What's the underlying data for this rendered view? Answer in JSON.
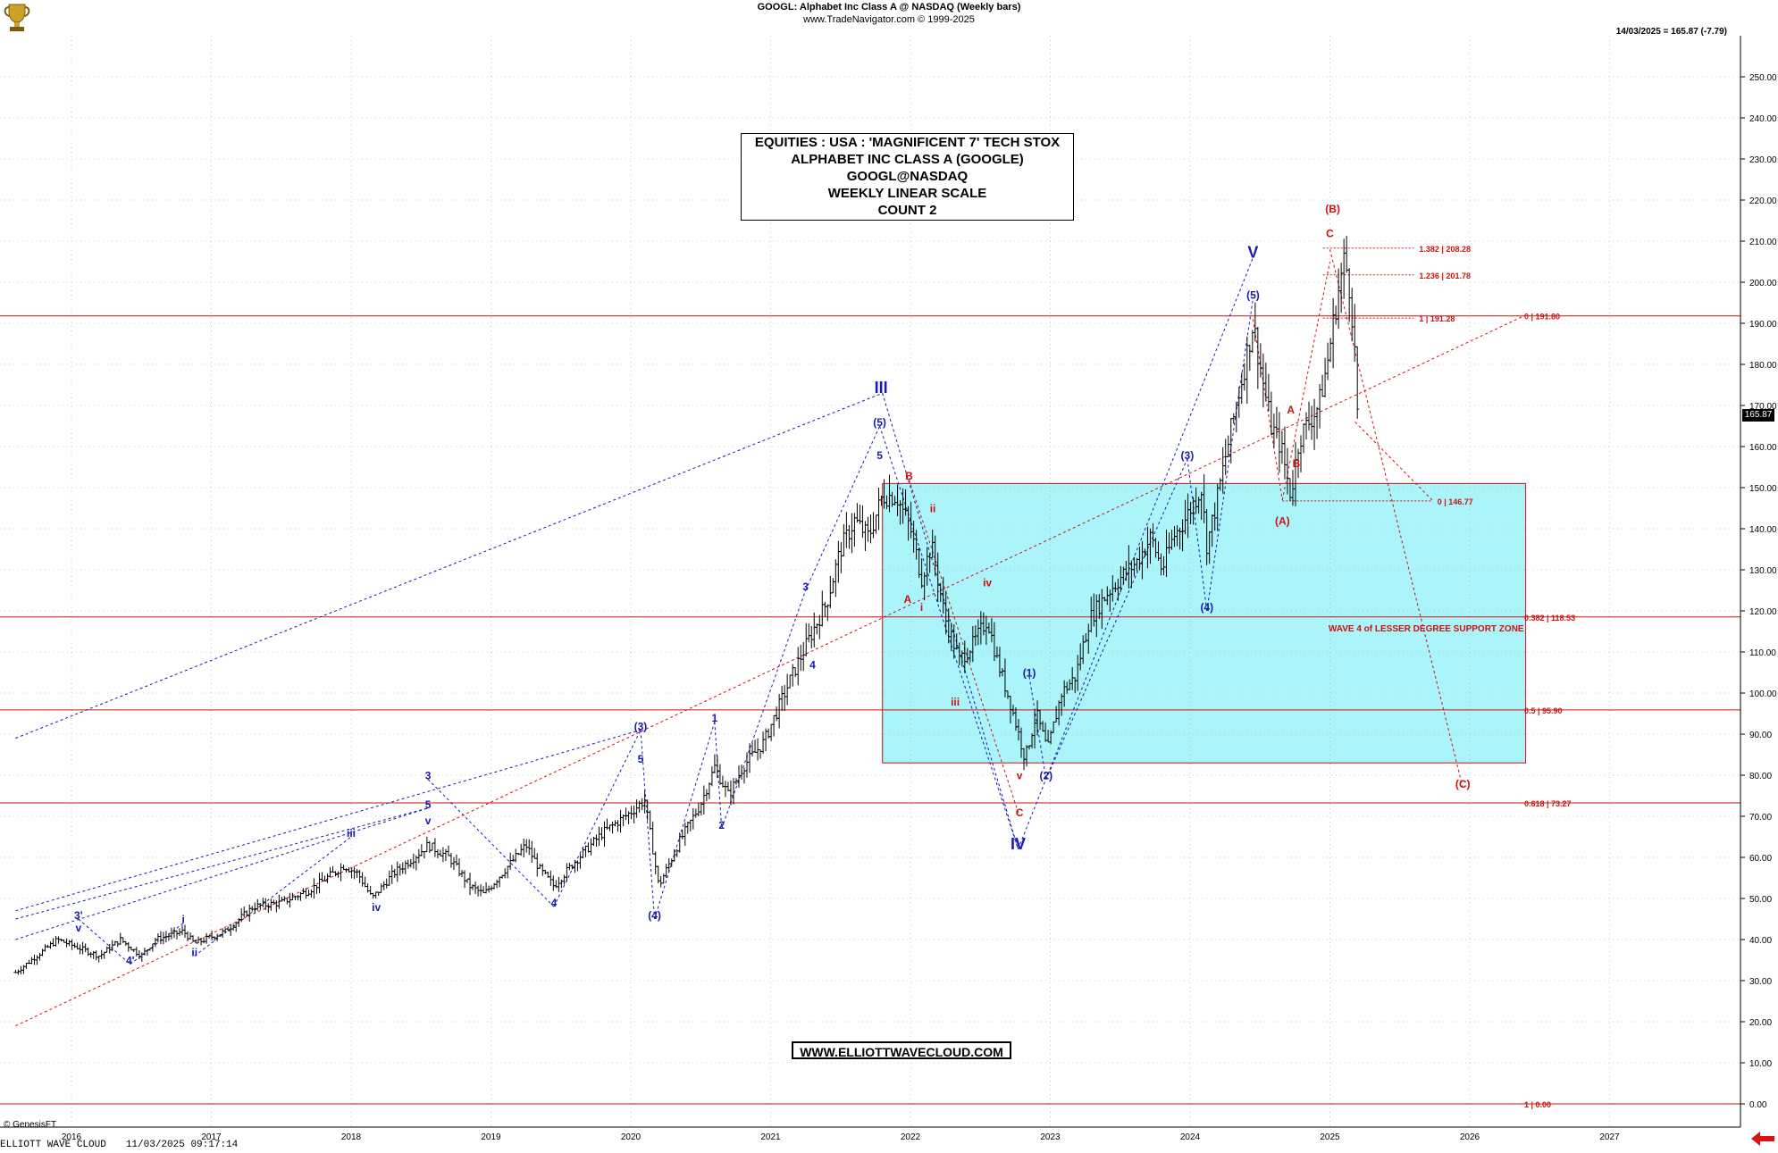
{
  "header": {
    "title": "GOOGL:  Alphabet Inc Class A @ NASDAQ  (Weekly bars)",
    "subtitle": "www.TradeNavigator.com © 1999-2025",
    "last_bar": "14/03/2025 = 165.87 (-7.79)"
  },
  "title_box": {
    "line1": "EQUITIES : USA : 'MAGNIFICENT 7' TECH STOX",
    "line2": "ALPHABET INC CLASS A (GOOGLE)",
    "line3": "GOOGL@NASDAQ",
    "line4": "WEEKLY LINEAR SCALE",
    "line5": "COUNT 2"
  },
  "url_box": "WWW.ELLIOTTWAVECLOUD.COM",
  "copyright": "© GenesisFT",
  "footer": {
    "label": "ELLIOTT WAVE CLOUD",
    "datetime": "11/03/2025 09:17:14"
  },
  "price_tag": "165.87",
  "colors": {
    "blue": "#1a1aa8",
    "red": "#cc1111",
    "zone": "#aaf4fa",
    "bars": "#000000"
  },
  "icons": {
    "logo": "trophy-logo-icon",
    "arrow": "red-left-arrow-icon"
  },
  "chart_data": {
    "type": "ohlc-weekly",
    "xlim": [
      2015.6,
      2027.4
    ],
    "ylim": [
      0,
      255
    ],
    "y_ticks": [
      "0.00",
      "10.00",
      "20.00",
      "30.00",
      "40.00",
      "50.00",
      "60.00",
      "70.00",
      "80.00",
      "90.00",
      "100.00",
      "110.00",
      "120.00",
      "130.00",
      "140.00",
      "150.00",
      "160.00",
      "170.00",
      "180.00",
      "190.00",
      "200.00",
      "210.00",
      "220.00",
      "230.00",
      "240.00",
      "250.00"
    ],
    "x_ticks": [
      "2016",
      "2017",
      "2018",
      "2019",
      "2020",
      "2021",
      "2022",
      "2023",
      "2024",
      "2025",
      "2026",
      "2027"
    ],
    "price_path": [
      [
        2015.6,
        32
      ],
      [
        2015.75,
        36
      ],
      [
        2015.9,
        40
      ],
      [
        2016.05,
        38
      ],
      [
        2016.2,
        36
      ],
      [
        2016.35,
        40
      ],
      [
        2016.5,
        36
      ],
      [
        2016.6,
        40
      ],
      [
        2016.8,
        42
      ],
      [
        2016.88,
        39
      ],
      [
        2017.1,
        42
      ],
      [
        2017.3,
        48
      ],
      [
        2017.5,
        49
      ],
      [
        2017.7,
        52
      ],
      [
        2017.95,
        58
      ],
      [
        2018.05,
        56
      ],
      [
        2018.15,
        50
      ],
      [
        2018.3,
        56
      ],
      [
        2018.45,
        60
      ],
      [
        2018.55,
        63
      ],
      [
        2018.7,
        60
      ],
      [
        2018.85,
        53
      ],
      [
        2018.95,
        51
      ],
      [
        2019.1,
        57
      ],
      [
        2019.25,
        63
      ],
      [
        2019.35,
        57
      ],
      [
        2019.45,
        53
      ],
      [
        2019.6,
        59
      ],
      [
        2019.8,
        66
      ],
      [
        2020.0,
        71
      ],
      [
        2020.1,
        74
      ],
      [
        2020.2,
        53
      ],
      [
        2020.35,
        64
      ],
      [
        2020.5,
        73
      ],
      [
        2020.6,
        82
      ],
      [
        2020.7,
        75
      ],
      [
        2020.8,
        82
      ],
      [
        2020.95,
        88
      ],
      [
        2021.05,
        96
      ],
      [
        2021.15,
        104
      ],
      [
        2021.3,
        115
      ],
      [
        2021.4,
        122
      ],
      [
        2021.5,
        135
      ],
      [
        2021.6,
        142
      ],
      [
        2021.7,
        138
      ],
      [
        2021.8,
        148
      ],
      [
        2021.9,
        148
      ],
      [
        2022.0,
        140
      ],
      [
        2022.08,
        128
      ],
      [
        2022.15,
        136
      ],
      [
        2022.25,
        118
      ],
      [
        2022.35,
        108
      ],
      [
        2022.45,
        112
      ],
      [
        2022.55,
        118
      ],
      [
        2022.62,
        108
      ],
      [
        2022.72,
        97
      ],
      [
        2022.82,
        84
      ],
      [
        2022.9,
        95
      ],
      [
        2022.98,
        86
      ],
      [
        2023.08,
        100
      ],
      [
        2023.18,
        104
      ],
      [
        2023.28,
        118
      ],
      [
        2023.4,
        124
      ],
      [
        2023.5,
        128
      ],
      [
        2023.62,
        132
      ],
      [
        2023.72,
        138
      ],
      [
        2023.8,
        130
      ],
      [
        2023.88,
        138
      ],
      [
        2023.96,
        142
      ],
      [
        2024.08,
        150
      ],
      [
        2024.12,
        136
      ],
      [
        2024.18,
        145
      ],
      [
        2024.28,
        162
      ],
      [
        2024.38,
        178
      ],
      [
        2024.45,
        190
      ],
      [
        2024.52,
        176
      ],
      [
        2024.58,
        165
      ],
      [
        2024.65,
        160
      ],
      [
        2024.72,
        148
      ],
      [
        2024.78,
        162
      ],
      [
        2024.85,
        166
      ],
      [
        2024.92,
        170
      ],
      [
        2024.98,
        180
      ],
      [
        2025.05,
        196
      ],
      [
        2025.1,
        205
      ],
      [
        2025.13,
        202
      ],
      [
        2025.17,
        188
      ],
      [
        2025.2,
        165.87
      ]
    ],
    "horizontal_levels": [
      {
        "label": "0 | 191.80",
        "value": 191.8,
        "style": "solid"
      },
      {
        "label": "0.382 | 118.53",
        "value": 118.53,
        "style": "solid"
      },
      {
        "label": "0.5 | 95.90",
        "value": 95.9,
        "style": "solid"
      },
      {
        "label": "0.618 | 73.27",
        "value": 73.27,
        "style": "solid"
      },
      {
        "label": "1 | 0.00",
        "value": 0.0,
        "style": "solid"
      }
    ],
    "fib_levels_short": [
      {
        "label": "1.382 | 208.28",
        "value": 208.28
      },
      {
        "label": "1.236 | 201.78",
        "value": 201.78
      },
      {
        "label": "1 | 191.28",
        "value": 191.28
      },
      {
        "label": "0 | 146.77",
        "value": 146.77
      }
    ],
    "support_zone": {
      "label": "WAVE 4 of LESSER DEGREE SUPPORT ZONE",
      "x_start": 2021.8,
      "x_end": 2026.4,
      "y_low": 83,
      "y_high": 151
    },
    "wave_labels_blue": [
      {
        "text": "3'",
        "x": 2016.05,
        "y": 45
      },
      {
        "text": "v",
        "x": 2016.05,
        "y": 42
      },
      {
        "text": "4'",
        "x": 2016.42,
        "y": 34
      },
      {
        "text": "i",
        "x": 2016.8,
        "y": 44
      },
      {
        "text": "ii",
        "x": 2016.88,
        "y": 36
      },
      {
        "text": "iii",
        "x": 2018.0,
        "y": 65
      },
      {
        "text": "iv",
        "x": 2018.18,
        "y": 47
      },
      {
        "text": "3",
        "x": 2018.55,
        "y": 79
      },
      {
        "text": "5",
        "x": 2018.55,
        "y": 72
      },
      {
        "text": "v",
        "x": 2018.55,
        "y": 68
      },
      {
        "text": "4",
        "x": 2019.45,
        "y": 48
      },
      {
        "text": "(3)",
        "x": 2020.07,
        "y": 91
      },
      {
        "text": "5",
        "x": 2020.07,
        "y": 83
      },
      {
        "text": "(4)",
        "x": 2020.17,
        "y": 45
      },
      {
        "text": "1",
        "x": 2020.6,
        "y": 93
      },
      {
        "text": "2",
        "x": 2020.65,
        "y": 67
      },
      {
        "text": "3",
        "x": 2021.25,
        "y": 125
      },
      {
        "text": "4",
        "x": 2021.3,
        "y": 106
      },
      {
        "text": "(5)",
        "x": 2021.78,
        "y": 165
      },
      {
        "text": "5",
        "x": 2021.78,
        "y": 157
      },
      {
        "text": "III",
        "x": 2021.79,
        "y": 173
      },
      {
        "text": "IV",
        "x": 2022.77,
        "y": 62
      },
      {
        "text": "(1)",
        "x": 2022.85,
        "y": 104
      },
      {
        "text": "(2)",
        "x": 2022.97,
        "y": 79
      },
      {
        "text": "(3)",
        "x": 2023.98,
        "y": 157
      },
      {
        "text": "(4)",
        "x": 2024.12,
        "y": 120
      },
      {
        "text": "(5)",
        "x": 2024.45,
        "y": 196
      },
      {
        "text": "V",
        "x": 2024.45,
        "y": 206
      }
    ],
    "wave_labels_red": [
      {
        "text": "B",
        "x": 2021.99,
        "y": 152
      },
      {
        "text": "ii",
        "x": 2022.16,
        "y": 144
      },
      {
        "text": "A",
        "x": 2021.98,
        "y": 122
      },
      {
        "text": "i",
        "x": 2022.08,
        "y": 120
      },
      {
        "text": "iv",
        "x": 2022.55,
        "y": 126
      },
      {
        "text": "iii",
        "x": 2022.32,
        "y": 97
      },
      {
        "text": "v",
        "x": 2022.78,
        "y": 79
      },
      {
        "text": "C",
        "x": 2022.78,
        "y": 70
      },
      {
        "text": "A",
        "x": 2024.72,
        "y": 168
      },
      {
        "text": "B",
        "x": 2024.76,
        "y": 155
      },
      {
        "text": "(A)",
        "x": 2024.66,
        "y": 141
      },
      {
        "text": "C",
        "x": 2025.0,
        "y": 211
      },
      {
        "text": "(B)",
        "x": 2025.02,
        "y": 217
      },
      {
        "text": "(C)",
        "x": 2025.95,
        "y": 77
      }
    ]
  }
}
